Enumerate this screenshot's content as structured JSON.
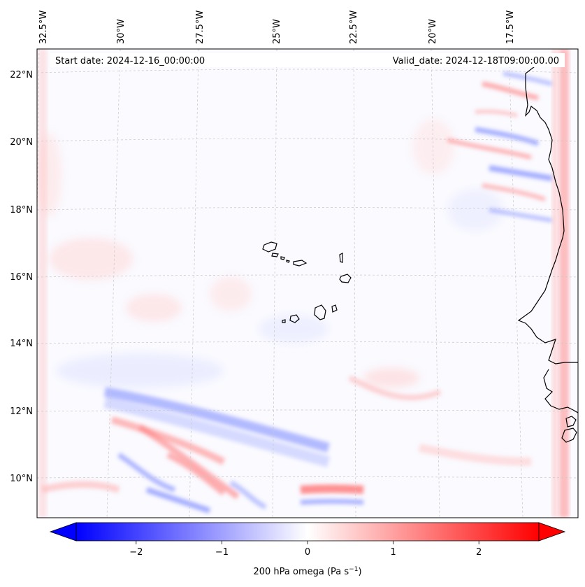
{
  "header": {
    "start_date": "Start date: 2024-12-16_00:00:00",
    "valid_date": "Valid_date: 2024-12-18T09:00:00.00"
  },
  "map": {
    "lon_labels": [
      "32.5°W",
      "30°W",
      "27.5°W",
      "25°W",
      "22.5°W",
      "20°W",
      "17.5°W"
    ],
    "lat_labels": [
      "22°N",
      "20°N",
      "18°N",
      "16°N",
      "14°N",
      "12°N",
      "10°N"
    ],
    "field_colors": {
      "negative": "#4a5cff",
      "positive": "#ff5a5a",
      "neutral": "#ffffff"
    }
  },
  "colorbar": {
    "label_prefix": "200 hPa omega (Pa s",
    "label_sup": "−1",
    "label_suffix": ")",
    "ticks": [
      "−2",
      "−1",
      "0",
      "1",
      "2"
    ],
    "min": -2.7,
    "max": 2.7,
    "tick_values": [
      -2,
      -1,
      0,
      1,
      2
    ],
    "color_low": "#0000ff",
    "color_mid": "#ffffff",
    "color_high": "#ff0000"
  }
}
